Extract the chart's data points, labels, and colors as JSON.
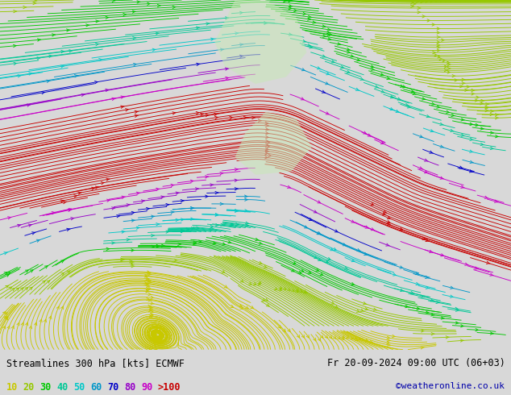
{
  "title_left": "Streamlines 300 hPa [kts] ECMWF",
  "title_right": "Fr 20-09-2024 09:00 UTC (06+03)",
  "credit": "©weatheronline.co.uk",
  "legend_values": [
    "10",
    "20",
    "30",
    "40",
    "50",
    "60",
    "70",
    "80",
    "90",
    ">100"
  ],
  "legend_colors": [
    "#c8c800",
    "#96c800",
    "#00c800",
    "#00c896",
    "#00c8c8",
    "#0096c8",
    "#0000c8",
    "#9600c8",
    "#c800c8",
    "#c80000"
  ],
  "bg_color": "#ffffff",
  "bottom_bg": "#d8d8d8",
  "figsize": [
    6.34,
    4.9
  ],
  "dpi": 100,
  "speed_bins": [
    [
      0,
      15,
      "#c8c800"
    ],
    [
      15,
      25,
      "#96c800"
    ],
    [
      25,
      35,
      "#00c800"
    ],
    [
      35,
      45,
      "#00c896"
    ],
    [
      45,
      55,
      "#00c8c8"
    ],
    [
      55,
      65,
      "#0096c8"
    ],
    [
      65,
      75,
      "#0000c8"
    ],
    [
      75,
      85,
      "#9600c8"
    ],
    [
      85,
      95,
      "#c800c8"
    ],
    [
      95,
      999,
      "#c80000"
    ]
  ]
}
